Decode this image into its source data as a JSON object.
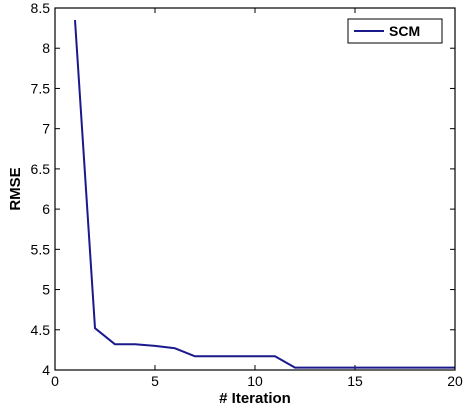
{
  "chart_data": {
    "type": "line",
    "title": "",
    "xlabel": "# Iteration",
    "ylabel": "RMSE",
    "xlim": [
      0,
      20
    ],
    "ylim": [
      4,
      8.5
    ],
    "xticks": [
      0,
      5,
      10,
      15,
      20
    ],
    "yticks": [
      4,
      4.5,
      5,
      5.5,
      6,
      6.5,
      7,
      7.5,
      8,
      8.5
    ],
    "grid": false,
    "legend_position": "top-right",
    "series": [
      {
        "name": "SCM",
        "color": "#1a1a8c",
        "x": [
          1,
          2,
          3,
          4,
          5,
          6,
          7,
          8,
          9,
          10,
          11,
          12,
          13,
          14,
          15,
          16,
          17,
          18,
          19,
          20
        ],
        "y": [
          8.35,
          4.52,
          4.32,
          4.32,
          4.3,
          4.27,
          4.17,
          4.17,
          4.17,
          4.17,
          4.17,
          4.03,
          4.03,
          4.03,
          4.03,
          4.03,
          4.03,
          4.03,
          4.03,
          4.03
        ]
      }
    ]
  }
}
